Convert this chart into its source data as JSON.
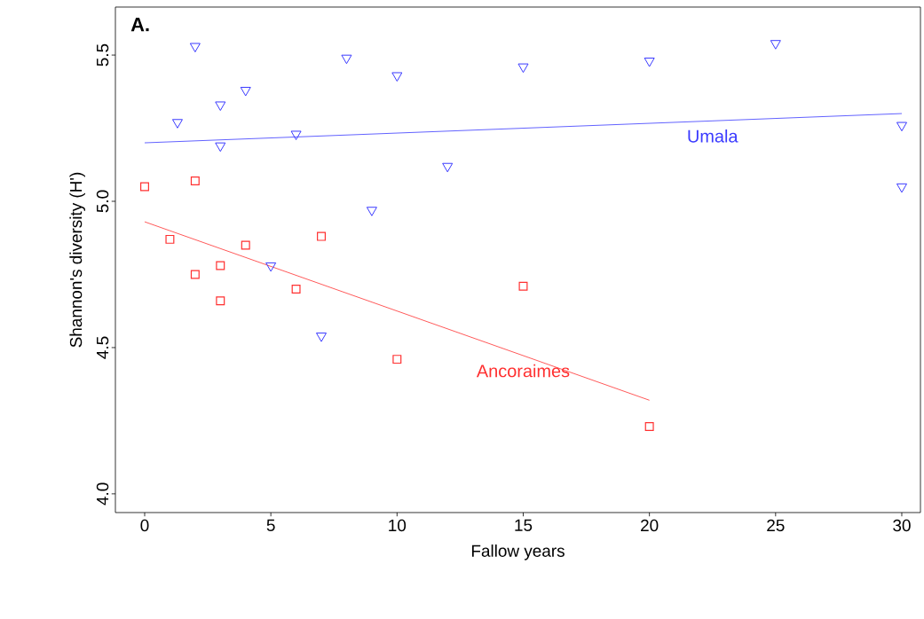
{
  "chart_data": {
    "type": "scatter",
    "xlabel": "Fallow years",
    "ylabel": "Shannon's diversity (H')",
    "annotations": [
      "A."
    ],
    "xlim": [
      -1.16,
      30.74
    ],
    "ylim": [
      3.936,
      5.664
    ],
    "xticks": [
      0,
      5,
      10,
      15,
      20,
      25,
      30
    ],
    "yticks": [
      {
        "value": 4.0,
        "label": "4.0"
      },
      {
        "value": 4.5,
        "label": "4.5"
      },
      {
        "value": 5.0,
        "label": "5.0"
      },
      {
        "value": 5.5,
        "label": "5.5"
      }
    ],
    "series": [
      {
        "marker": "triangle",
        "color": "#3a3aff",
        "x": [
          2,
          1.3,
          3,
          3,
          4,
          6,
          8,
          10,
          9,
          5,
          7,
          12,
          15,
          20,
          25,
          30,
          30
        ],
        "values": [
          5.53,
          5.27,
          5.33,
          5.19,
          5.38,
          5.23,
          5.49,
          5.43,
          4.97,
          4.78,
          4.54,
          5.12,
          5.46,
          5.48,
          5.54,
          5.26,
          5.05
        ]
      },
      {
        "type": "line",
        "marker": "none",
        "color": "#3a3aff",
        "name": "Umala",
        "x": [
          0,
          30
        ],
        "values": [
          5.2,
          5.3
        ]
      },
      {
        "marker": "square",
        "color": "#ff3030",
        "x": [
          0,
          1,
          2,
          2,
          3,
          3,
          4,
          6,
          7,
          10,
          15,
          20
        ],
        "values": [
          5.05,
          4.87,
          5.07,
          4.75,
          4.78,
          4.66,
          4.85,
          4.7,
          4.88,
          4.46,
          4.71,
          4.23
        ]
      },
      {
        "type": "line",
        "marker": "none",
        "color": "#ff3030",
        "name": "Ancoraimes",
        "x": [
          0,
          20
        ],
        "values": [
          4.93,
          4.32
        ]
      }
    ]
  }
}
